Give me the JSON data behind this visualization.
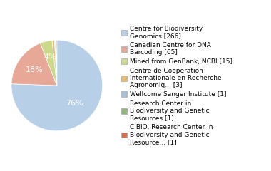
{
  "labels": [
    "Centre for Biodiversity\nGenomics [266]",
    "Canadian Centre for DNA\nBarcoding [65]",
    "Mined from GenBank, NCBI [15]",
    "Centre de Cooperation\nInternationale en Recherche\nAgronomiq... [3]",
    "Wellcome Sanger Institute [1]",
    "Research Center in\nBiodiversity and Genetic\nResources [1]",
    "CIBIO, Research Center in\nBiodiversity and Genetic\nResource... [1]"
  ],
  "values": [
    266,
    65,
    15,
    3,
    1,
    1,
    1
  ],
  "colors": [
    "#b8cfe8",
    "#e8a898",
    "#cdd98a",
    "#e8b870",
    "#a8c0d8",
    "#8db87a",
    "#d9704a"
  ],
  "background_color": "#ffffff",
  "legend_fontsize": 6.5,
  "pct_fontsize": 8,
  "startangle": 90
}
